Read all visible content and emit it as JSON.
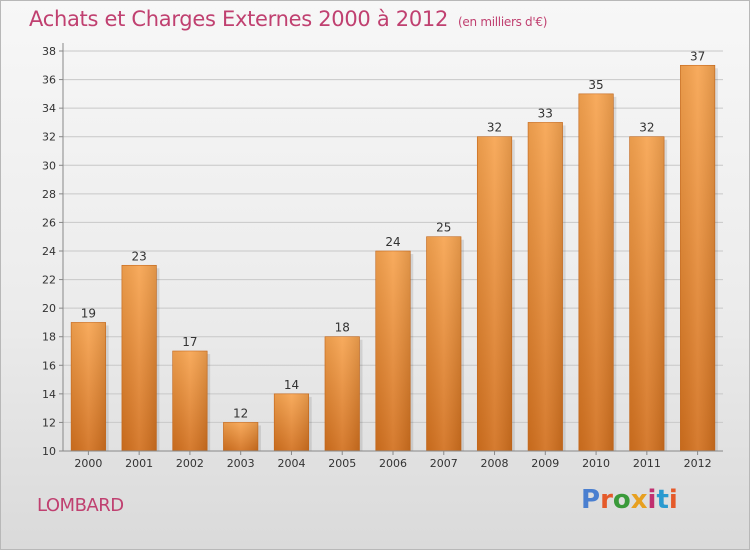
{
  "header": {
    "title": "Achats et Charges Externes 2000 à 2012",
    "unit": "(en milliers d'€)"
  },
  "footer": {
    "town": "LOMBARD",
    "logo_text": "Proxiti",
    "logo_colors": [
      "#4a7fd0",
      "#e55a2a",
      "#3a9a3a",
      "#e7a020",
      "#c03070",
      "#2a9ad0",
      "#e55a2a"
    ]
  },
  "colors": {
    "title": "#c04070",
    "bar_top": "#f7a450",
    "bar_bottom": "#d2701e",
    "grid": "#c8c8c8",
    "axis": "#888888"
  },
  "chart_data": {
    "type": "bar",
    "title": "Achats et Charges Externes 2000 à 2012",
    "ylabel": "",
    "xlabel": "",
    "categories": [
      "2000",
      "2001",
      "2002",
      "2003",
      "2004",
      "2005",
      "2006",
      "2007",
      "2008",
      "2009",
      "2010",
      "2011",
      "2012"
    ],
    "values": [
      19,
      23,
      17,
      12,
      14,
      18,
      24,
      25,
      32,
      33,
      35,
      32,
      37
    ],
    "ylim": [
      10,
      38
    ],
    "yticks": [
      10,
      12,
      14,
      16,
      18,
      20,
      22,
      24,
      26,
      28,
      30,
      32,
      34,
      36,
      38
    ],
    "grid": true,
    "data_labels": true
  }
}
